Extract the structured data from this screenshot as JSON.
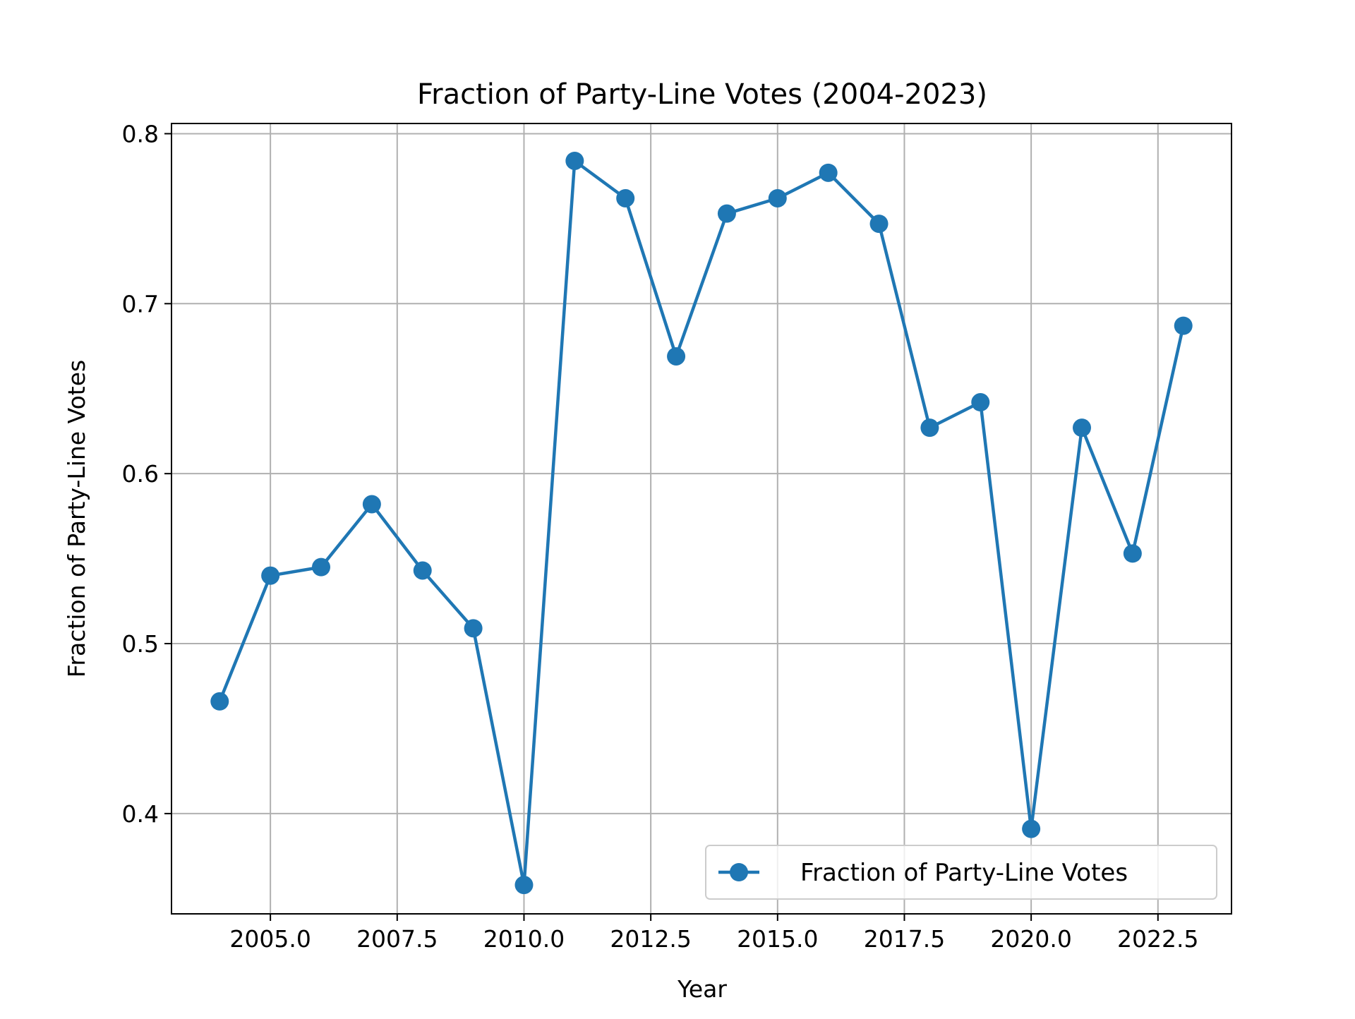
{
  "chart_data": {
    "type": "line",
    "title": "Fraction of Party-Line Votes (2004-2023)",
    "xlabel": "Year",
    "ylabel": "Fraction of Party-Line Votes",
    "xlim": [
      2003.05,
      2023.95
    ],
    "ylim": [
      0.341,
      0.806
    ],
    "x_ticks": [
      2005.0,
      2007.5,
      2010.0,
      2012.5,
      2015.0,
      2017.5,
      2020.0,
      2022.5
    ],
    "x_tick_labels": [
      "2005.0",
      "2007.5",
      "2010.0",
      "2012.5",
      "2015.0",
      "2017.5",
      "2020.0",
      "2022.5"
    ],
    "y_ticks": [
      0.4,
      0.5,
      0.6,
      0.7,
      0.8
    ],
    "y_tick_labels": [
      "0.4",
      "0.5",
      "0.6",
      "0.7",
      "0.8"
    ],
    "grid": true,
    "legend_position": "lower-right",
    "series": [
      {
        "name": "Fraction of Party-Line Votes",
        "color": "#1f77b4",
        "marker": "circle",
        "x": [
          2004,
          2005,
          2006,
          2007,
          2008,
          2009,
          2010,
          2011,
          2012,
          2013,
          2014,
          2015,
          2016,
          2017,
          2018,
          2019,
          2020,
          2021,
          2022,
          2023
        ],
        "values": [
          0.466,
          0.54,
          0.545,
          0.582,
          0.543,
          0.509,
          0.358,
          0.784,
          0.762,
          0.669,
          0.753,
          0.762,
          0.777,
          0.747,
          0.627,
          0.642,
          0.391,
          0.627,
          0.553,
          0.687
        ]
      }
    ]
  }
}
